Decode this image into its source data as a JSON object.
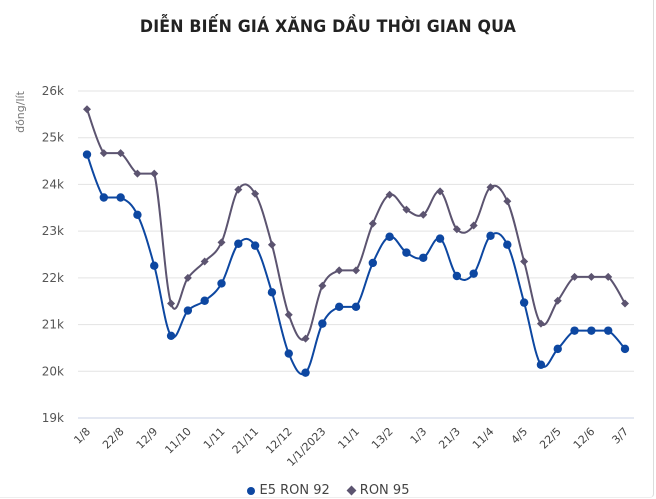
{
  "chart_data": {
    "type": "line",
    "title": "DIỄN BIẾN GIÁ XĂNG DẦU THỜI GIAN QUA",
    "xlabel": "",
    "ylabel": "đồng/lít",
    "ylim": [
      19000,
      26000
    ],
    "yticks": [
      "19k",
      "20k",
      "21k",
      "22k",
      "23k",
      "24k",
      "25k",
      "26k"
    ],
    "grid": true,
    "legend_position": "bottom",
    "x_tick_labels": [
      "1/8",
      "22/8",
      "12/9",
      "11/10",
      "1/11",
      "21/11",
      "12/12",
      "1/1/2023",
      "11/1",
      "13/2",
      "1/3",
      "21/3",
      "11/4",
      "4/5",
      "22/5",
      "12/6",
      "3/7"
    ],
    "x_tick_every": 2,
    "point_count": 33,
    "series": [
      {
        "name": "E5 RON 92",
        "color": "#0d47a1",
        "marker": "circle",
        "values": [
          24640,
          23720,
          23720,
          23350,
          22260,
          20760,
          21300,
          21510,
          21880,
          22730,
          22690,
          21690,
          20380,
          19970,
          21020,
          21380,
          21380,
          22320,
          22880,
          22540,
          22430,
          22840,
          22040,
          22090,
          22900,
          22710,
          21470,
          20140,
          20480,
          20870,
          20870,
          20870,
          20480
        ]
      },
      {
        "name": "RON 95",
        "color": "#5c5470",
        "marker": "diamond",
        "values": [
          25610,
          24670,
          24670,
          24230,
          24230,
          21450,
          22000,
          22350,
          22760,
          23890,
          23800,
          22710,
          21210,
          20700,
          21830,
          22160,
          22160,
          23160,
          23780,
          23460,
          23350,
          23850,
          23040,
          23120,
          23940,
          23640,
          22350,
          21020,
          21510,
          22020,
          22020,
          22020,
          21450
        ]
      }
    ]
  },
  "legend": {
    "e5": "E5 RON 92",
    "ron95": "RON 95"
  }
}
